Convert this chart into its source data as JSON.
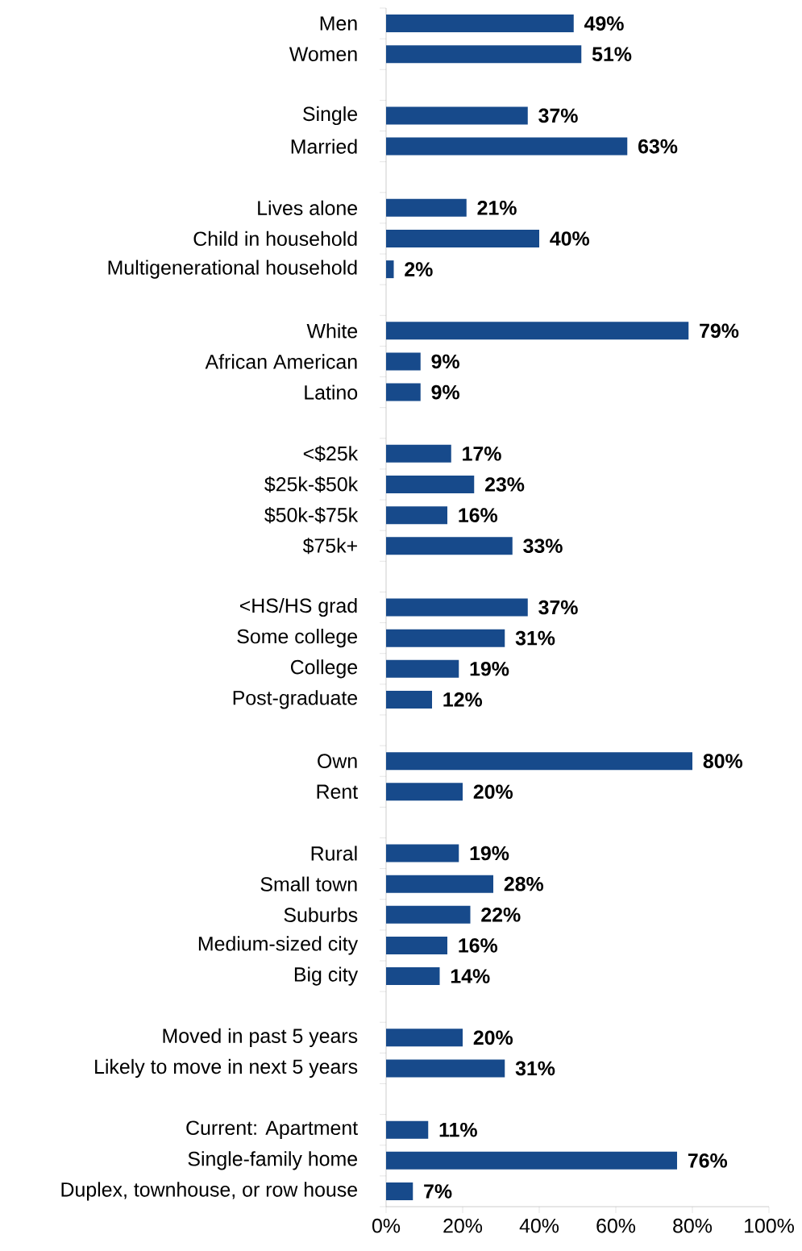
{
  "chart_data": {
    "type": "bar",
    "orientation": "horizontal",
    "color": "#174a8b",
    "categories": [
      "Men",
      "Women",
      null,
      "Single",
      "Married",
      null,
      "Lives alone",
      "Child in household",
      "Multigenerational household",
      null,
      "White",
      "African American",
      "Latino",
      null,
      "<$25k",
      "$25k-$50k",
      "$50k-$75k",
      "$75k+",
      null,
      "<HS/HS grad",
      "Some college",
      "College",
      "Post-graduate",
      null,
      "Own",
      "Rent",
      null,
      "Rural",
      "Small town",
      "Suburbs",
      "Medium-sized city",
      "Big city",
      null,
      "Moved in past 5 years",
      "Likely to move in next 5 years",
      null,
      "Current: Apartment",
      "Single-family home",
      "Duplex, townhouse, or row house"
    ],
    "values": [
      49,
      51,
      null,
      37,
      63,
      null,
      21,
      40,
      2,
      null,
      79,
      9,
      9,
      null,
      17,
      23,
      16,
      33,
      null,
      37,
      31,
      19,
      12,
      null,
      80,
      20,
      null,
      19,
      28,
      22,
      16,
      14,
      null,
      20,
      31,
      null,
      11,
      76,
      7
    ],
    "value_labels": [
      "49%",
      "51%",
      null,
      "37%",
      "63%",
      null,
      "21%",
      "40%",
      "2%",
      null,
      "79%",
      "9%",
      "9%",
      null,
      "17%",
      "23%",
      "16%",
      "33%",
      null,
      "37%",
      "31%",
      "19%",
      "12%",
      null,
      "80%",
      "20%",
      null,
      "19%",
      "28%",
      "22%",
      "16%",
      "14%",
      null,
      "20%",
      "31%",
      null,
      "11%",
      "76%",
      "7%"
    ],
    "xlim": [
      0,
      100
    ],
    "xticks": [
      {
        "value": 0,
        "label": "0%"
      },
      {
        "value": 20,
        "label": "20%"
      },
      {
        "value": 40,
        "label": "40%"
      },
      {
        "value": 60,
        "label": "60%"
      },
      {
        "value": 80,
        "label": "80%"
      },
      {
        "value": 100,
        "label": "100%"
      }
    ],
    "grid": false
  }
}
